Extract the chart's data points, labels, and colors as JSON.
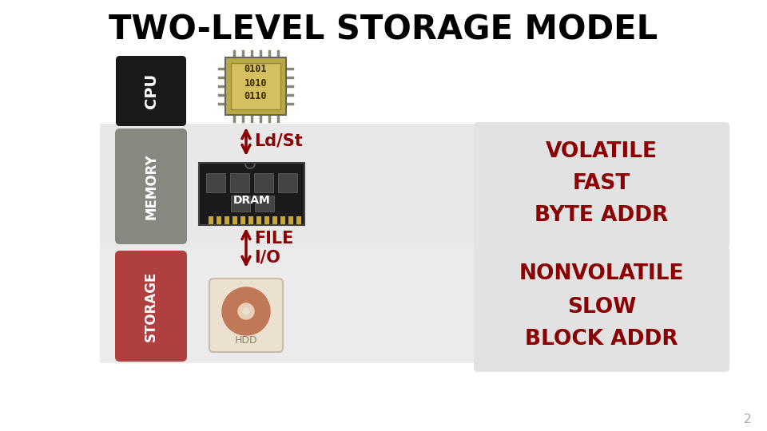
{
  "title": "TWO-LEVEL STORAGE MODEL",
  "title_fontsize": 30,
  "title_color": "#000000",
  "bg_color": "#ffffff",
  "memory_band_color": "#e8e8e8",
  "storage_band_color": "#ebebeb",
  "cpu_box_color": "#1a1a1a",
  "memory_box_color": "#888880",
  "storage_box_color": "#b04040",
  "text_red": "#8b0000",
  "label_white": "#ffffff",
  "arrow_color": "#8b0000",
  "volatile_lines": [
    "VOLATILE",
    "FAST",
    "BYTE ADDR"
  ],
  "nonvolatile_lines": [
    "NONVOLATILE",
    "SLOW",
    "BLOCK ADDR"
  ],
  "page_number": "2",
  "ldst_label": "Ld/St",
  "fileio_label": "FILE\nI/O",
  "dram_label": "DRAM",
  "hdd_label": "HDD",
  "cpu_label": "CPU",
  "memory_label": "MEMORY",
  "storage_label": "STORAGE"
}
